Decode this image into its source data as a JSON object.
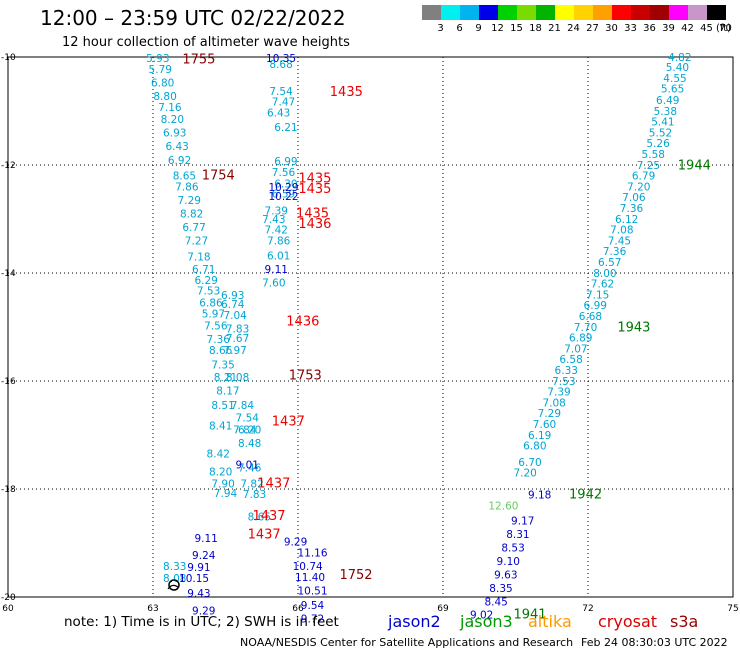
{
  "header": {
    "title": "12:00 – 23:59 UTC 02/22/2022",
    "subtitle": "12 hour collection of altimeter wave heights"
  },
  "colorbar": {
    "colors": [
      "#808080",
      "#00f0f0",
      "#00b4f0",
      "#0000e8",
      "#00d200",
      "#78dc00",
      "#00b400",
      "#ffff00",
      "#ffd200",
      "#ffa000",
      "#ff0000",
      "#c80000",
      "#a00000",
      "#ff00ff",
      "#c896c8",
      "#000000"
    ],
    "labels": [
      "3",
      "6",
      "9",
      "12",
      "15",
      "18",
      "21",
      "24",
      "27",
      "30",
      "33",
      "36",
      "39",
      "42",
      "45",
      "70"
    ],
    "unit": "(ft)"
  },
  "footer": {
    "note": "note: 1) Time is in UTC; 2) SWH is in feet",
    "sources": [
      {
        "name": "jason2",
        "color": "#0000cc"
      },
      {
        "name": "jason3",
        "color": "#009900"
      },
      {
        "name": "altika",
        "color": "#ff9900"
      },
      {
        "name": "cryosat",
        "color": "#dd0000"
      },
      {
        "name": "s3a",
        "color": "#990000"
      }
    ],
    "credit": "NOAA/NESDIS Center for Satellite Applications and Research",
    "timestamp": "Feb 24 08:30:03 UTC 2022"
  },
  "chart_data": {
    "type": "scatter",
    "xlim": [
      60,
      75
    ],
    "ylim": [
      -20,
      -10
    ],
    "grid": true,
    "x_ticks": [
      "60",
      "63",
      "66",
      "69",
      "72",
      "75"
    ],
    "y_ticks": [
      "-10",
      "-12",
      "-14",
      "-16",
      "-18",
      "-20"
    ],
    "x_tick_values": [
      60,
      63,
      66,
      69,
      72,
      75
    ],
    "y_tick_values": [
      -10,
      -12,
      -14,
      -16,
      -18,
      -20
    ],
    "series": [
      {
        "name": "jason3",
        "color": "#00a5d2",
        "points": [
          [
            73.9,
            -10.07,
            "4.82"
          ],
          [
            73.85,
            -10.26,
            "5.40"
          ],
          [
            73.8,
            -10.46,
            "4.55"
          ],
          [
            73.75,
            -10.66,
            "5.65"
          ],
          [
            73.65,
            -10.87,
            "6.49"
          ],
          [
            73.6,
            -11.07,
            "5.38"
          ],
          [
            73.55,
            -11.27,
            "5.41"
          ],
          [
            73.5,
            -11.47,
            "5.52"
          ],
          [
            73.45,
            -11.67,
            "5.26"
          ],
          [
            73.35,
            -11.87,
            "5.58"
          ],
          [
            73.25,
            -12.07,
            "7.25"
          ],
          [
            73.15,
            -12.27,
            "6.79"
          ],
          [
            73.05,
            -12.47,
            "7.20"
          ],
          [
            72.95,
            -12.67,
            "7.06"
          ],
          [
            72.9,
            -12.87,
            "7.36"
          ],
          [
            72.8,
            -13.07,
            "6.12"
          ],
          [
            72.7,
            -13.27,
            "7.08"
          ],
          [
            72.65,
            -13.47,
            "7.45"
          ],
          [
            72.55,
            -13.67,
            "7.36"
          ],
          [
            72.45,
            -13.87,
            "6.57"
          ],
          [
            72.35,
            -14.07,
            "8.00"
          ],
          [
            72.3,
            -14.27,
            "7.62"
          ],
          [
            72.2,
            -14.47,
            "7.15"
          ],
          [
            72.15,
            -14.67,
            "6.99"
          ],
          [
            72.05,
            -14.87,
            "6.68"
          ],
          [
            71.95,
            -15.07,
            "7.70"
          ],
          [
            71.85,
            -15.27,
            "6.89"
          ],
          [
            71.75,
            -15.47,
            "7.07"
          ],
          [
            71.65,
            -15.67,
            "6.58"
          ],
          [
            71.55,
            -15.87,
            "6.33"
          ],
          [
            71.5,
            -16.07,
            "7.53"
          ],
          [
            71.4,
            -16.27,
            "7.39"
          ],
          [
            71.3,
            -16.47,
            "7.08"
          ],
          [
            71.2,
            -16.67,
            "7.29"
          ],
          [
            71.1,
            -16.87,
            "7.60"
          ],
          [
            71.0,
            -17.07,
            "6.19"
          ],
          [
            70.9,
            -17.27,
            "6.80"
          ],
          [
            70.8,
            -17.57,
            "6.70"
          ],
          [
            70.7,
            -17.77,
            "7.20"
          ]
        ]
      },
      {
        "name": "jason3 (green)",
        "color": "#66cc66",
        "points": [
          [
            70.25,
            -18.38,
            "12.60"
          ]
        ]
      },
      {
        "name": "jason3 (cyan, west)",
        "color": "#00a5d2",
        "points": [
          [
            63.1,
            -10.09,
            "5.93"
          ],
          [
            63.15,
            -10.3,
            "5.79"
          ],
          [
            63.2,
            -10.55,
            "6.80"
          ],
          [
            63.25,
            -10.8,
            "8.80"
          ],
          [
            63.35,
            -11.0,
            "7.16"
          ],
          [
            63.4,
            -11.22,
            "8.20"
          ],
          [
            63.45,
            -11.47,
            "6.93"
          ],
          [
            63.5,
            -11.72,
            "6.43"
          ],
          [
            63.55,
            -11.98,
            "6.92"
          ],
          [
            63.65,
            -12.27,
            "8.65"
          ],
          [
            63.7,
            -12.47,
            "7.86"
          ],
          [
            63.75,
            -12.72,
            "7.29"
          ],
          [
            63.8,
            -12.97,
            "8.82"
          ],
          [
            63.85,
            -13.22,
            "6.77"
          ],
          [
            63.9,
            -13.47,
            "7.27"
          ],
          [
            63.95,
            -13.77,
            "7.18"
          ],
          [
            64.05,
            -14.0,
            "6.71"
          ],
          [
            64.1,
            -14.2,
            "6.29"
          ],
          [
            64.15,
            -14.4,
            "7.53"
          ],
          [
            64.2,
            -14.62,
            "6.86"
          ],
          [
            64.25,
            -14.82,
            "5.97"
          ],
          [
            64.3,
            -15.05,
            "7.56"
          ],
          [
            64.35,
            -15.3,
            "7.36"
          ],
          [
            64.4,
            -15.5,
            "8.66"
          ],
          [
            64.45,
            -15.77,
            "7.35"
          ],
          [
            64.5,
            -16.0,
            "8.21"
          ],
          [
            64.55,
            -16.25,
            "8.17"
          ],
          [
            64.45,
            -16.52,
            "8.51"
          ],
          [
            64.4,
            -16.9,
            "8.41"
          ],
          [
            64.35,
            -17.42,
            "8.42"
          ],
          [
            64.4,
            -17.75,
            "8.20"
          ],
          [
            64.45,
            -17.97,
            "7.90"
          ],
          [
            64.5,
            -18.15,
            "7.94"
          ],
          [
            64.65,
            -14.48,
            "6.93"
          ],
          [
            64.65,
            -14.65,
            "6.74"
          ],
          [
            64.7,
            -14.85,
            "7.04"
          ],
          [
            64.75,
            -15.1,
            "7.83"
          ],
          [
            64.75,
            -15.28,
            "7.67"
          ],
          [
            64.7,
            -15.5,
            "7.97"
          ],
          [
            64.75,
            -16.0,
            "8.08"
          ],
          [
            64.85,
            -16.52,
            "7.84"
          ],
          [
            64.95,
            -16.75,
            "7.54"
          ],
          [
            64.9,
            -16.97,
            "7.84"
          ],
          [
            65.0,
            -16.97,
            "6.20"
          ],
          [
            65.0,
            -17.22,
            "8.48"
          ],
          [
            65.0,
            -17.68,
            "7.46"
          ],
          [
            65.05,
            -17.97,
            "7.82"
          ],
          [
            65.1,
            -18.17,
            "7.83"
          ],
          [
            65.2,
            -18.58,
            "8.65"
          ],
          [
            65.6,
            -13.47,
            "7.86"
          ],
          [
            65.55,
            -13.27,
            "7.42"
          ],
          [
            65.5,
            -13.07,
            "7.43"
          ],
          [
            65.55,
            -12.92,
            "7.39"
          ],
          [
            65.75,
            -12.0,
            "6.99"
          ],
          [
            65.7,
            -12.2,
            "7.56"
          ],
          [
            65.75,
            -12.42,
            "6.30"
          ],
          [
            65.7,
            -12.6,
            "6.59"
          ],
          [
            65.75,
            -11.37,
            "6.21"
          ],
          [
            65.65,
            -10.7,
            "7.54"
          ],
          [
            65.7,
            -10.9,
            "7.47"
          ],
          [
            65.6,
            -11.1,
            "6.43"
          ],
          [
            65.65,
            -10.2,
            "8.68"
          ],
          [
            65.6,
            -13.75,
            "6.01"
          ],
          [
            65.5,
            -14.25,
            "7.60"
          ],
          [
            63.45,
            -19.5,
            "8.33"
          ],
          [
            63.45,
            -19.72,
            "8.08"
          ]
        ]
      },
      {
        "name": "jason2",
        "color": "#0000cc",
        "points": [
          [
            65.65,
            -10.09,
            "10.35"
          ],
          [
            65.7,
            -12.48,
            "10.29"
          ],
          [
            65.7,
            -12.65,
            "10.22"
          ],
          [
            65.55,
            -14.0,
            "9.11"
          ],
          [
            64.95,
            -17.62,
            "9.01"
          ],
          [
            64.1,
            -18.98,
            "9.11"
          ],
          [
            64.05,
            -19.3,
            "9.24"
          ],
          [
            63.95,
            -19.52,
            "9.91"
          ],
          [
            63.85,
            -19.72,
            "10.15"
          ],
          [
            63.95,
            -20.0,
            "9.43"
          ],
          [
            65.95,
            -19.05,
            "9.29"
          ],
          [
            66.3,
            -19.25,
            "11.16"
          ],
          [
            66.2,
            -19.5,
            "10.74"
          ],
          [
            66.25,
            -19.7,
            "11.40"
          ],
          [
            66.3,
            -19.95,
            "10.51"
          ],
          [
            66.3,
            -20.22,
            "9.54"
          ],
          [
            66.3,
            -20.47,
            "9.72"
          ],
          [
            64.05,
            -20.32,
            "9.29"
          ],
          [
            71.0,
            -18.18,
            "9.18"
          ],
          [
            70.65,
            -18.66,
            "9.17"
          ],
          [
            70.55,
            -18.91,
            "8.31"
          ],
          [
            70.45,
            -19.16,
            "8.53"
          ],
          [
            70.35,
            -19.41,
            "9.10"
          ],
          [
            70.3,
            -19.66,
            "9.63"
          ],
          [
            70.2,
            -19.91,
            "8.35"
          ],
          [
            70.1,
            -20.16,
            "8.45"
          ],
          [
            69.8,
            -20.4,
            "9.02"
          ]
        ]
      },
      {
        "name": "cryosat",
        "color": "#ee0000",
        "points": [
          [
            67.0,
            -10.72,
            "1435"
          ],
          [
            66.35,
            -12.32,
            "1435"
          ],
          [
            66.35,
            -12.52,
            "1435"
          ],
          [
            66.3,
            -12.97,
            "1435"
          ],
          [
            66.35,
            -13.17,
            "1436"
          ],
          [
            66.1,
            -14.97,
            "1436"
          ],
          [
            65.8,
            -16.82,
            "1437"
          ],
          [
            65.5,
            -17.97,
            "1437"
          ],
          [
            65.4,
            -18.57,
            "1437"
          ],
          [
            65.3,
            -18.92,
            "1437"
          ]
        ]
      },
      {
        "name": "s3a",
        "color": "#880000",
        "points": [
          [
            63.95,
            -10.12,
            "1755"
          ],
          [
            64.35,
            -12.27,
            "1754"
          ],
          [
            66.15,
            -15.97,
            "1753"
          ],
          [
            67.2,
            -19.67,
            "1752"
          ]
        ]
      },
      {
        "name": "jason3 labels",
        "color": "#007700",
        "points": [
          [
            74.2,
            -12.08,
            "1944"
          ],
          [
            72.95,
            -15.08,
            "1943"
          ],
          [
            71.95,
            -18.18,
            "1942"
          ],
          [
            70.8,
            -20.4,
            "1941"
          ]
        ]
      }
    ]
  }
}
